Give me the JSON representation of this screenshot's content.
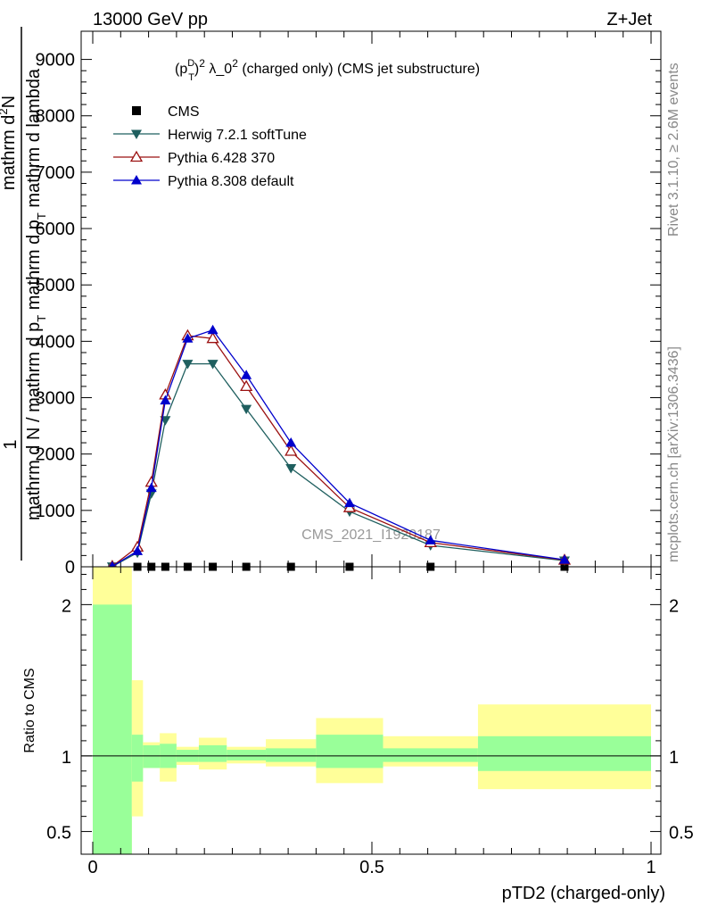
{
  "header": {
    "left": "13000 GeV pp",
    "right": "Z+Jet"
  },
  "side_texts": {
    "rivet": "Rivet 3.1.10, ≥ 2.6M events",
    "mcplots": "mcplots.cern.ch [arXiv:1306.3436]"
  },
  "watermark": "CMS_2021_I1920187",
  "colors": {
    "cms": "#000000",
    "herwig": "#1f5f5f",
    "pythia6": "#9b1111",
    "pythia8": "#0000cc",
    "band_inner": "#99ff99",
    "band_outer": "#ffff99"
  },
  "chart_data": [
    {
      "type": "line",
      "title_parts": {
        "a": "(p",
        "b": "D",
        "c": "T",
        "d": ")",
        "e": "2",
        "f": " λ_0",
        "g": "2",
        "h": " (charged only) (CMS jet substructure)"
      },
      "ylabel_parts": {
        "one": "1",
        "num": "mathrm d",
        "num_sup": "2",
        "num_end": "N",
        "den": "mathrm d N / mathrm d p",
        "den_sub": "T",
        "den_end": " mathrm d p",
        "den_sub2": "T",
        "den_end2": " mathrm d lambda"
      },
      "xlim": [
        0,
        1
      ],
      "ylim": [
        0,
        9500
      ],
      "yticks": [
        0,
        1000,
        2000,
        3000,
        4000,
        5000,
        6000,
        7000,
        8000,
        9000
      ],
      "ytick_labels": [
        "0",
        "1000",
        "2000",
        "3000",
        "4000",
        "5000",
        "6000",
        "7000",
        "8000",
        "9000"
      ],
      "legend_position": "top-left",
      "series": [
        {
          "name": "CMS",
          "marker": "square",
          "x": [
            0.035,
            0.08,
            0.105,
            0.13,
            0.17,
            0.215,
            0.275,
            0.355,
            0.46,
            0.605,
            0.845
          ],
          "values": [
            0,
            0,
            0,
            0,
            0,
            0,
            0,
            0,
            0,
            0,
            0
          ]
        },
        {
          "name": "Herwig 7.2.1 softTune",
          "marker": "triangle-down",
          "x": [
            0.035,
            0.08,
            0.105,
            0.13,
            0.17,
            0.215,
            0.275,
            0.355,
            0.46,
            0.605,
            0.845
          ],
          "values": [
            5,
            250,
            1300,
            2600,
            3600,
            3600,
            2800,
            1750,
            980,
            380,
            110
          ]
        },
        {
          "name": "Pythia 6.428 370",
          "marker": "triangle-up-open",
          "x": [
            0.035,
            0.08,
            0.105,
            0.13,
            0.17,
            0.215,
            0.275,
            0.355,
            0.46,
            0.605,
            0.845
          ],
          "values": [
            10,
            350,
            1500,
            3050,
            4100,
            4050,
            3200,
            2050,
            1050,
            430,
            120
          ]
        },
        {
          "name": "Pythia 8.308 default",
          "marker": "triangle-up",
          "x": [
            0.035,
            0.08,
            0.105,
            0.13,
            0.17,
            0.215,
            0.275,
            0.355,
            0.46,
            0.605,
            0.845
          ],
          "values": [
            8,
            280,
            1400,
            2950,
            4050,
            4200,
            3400,
            2200,
            1130,
            470,
            125
          ]
        }
      ]
    },
    {
      "type": "area",
      "ylabel": "Ratio to CMS",
      "xlabel": "pTD2 (charged-only)",
      "xlim": [
        0,
        1
      ],
      "ylim": [
        0.35,
        2.25
      ],
      "xticks": [
        0,
        0.5,
        1
      ],
      "xtick_labels": [
        "0",
        "0.5",
        "1"
      ],
      "yticks": [
        0.5,
        1,
        2
      ],
      "ytick_labels": [
        "0.5",
        "1",
        "2"
      ],
      "bins": [
        {
          "lo": 0.0,
          "hi": 0.07,
          "inner": [
            0.35,
            2.0
          ],
          "outer": [
            0.35,
            2.25
          ]
        },
        {
          "lo": 0.07,
          "hi": 0.09,
          "inner": [
            0.83,
            1.14
          ],
          "outer": [
            0.6,
            1.5
          ]
        },
        {
          "lo": 0.09,
          "hi": 0.12,
          "inner": [
            0.92,
            1.07
          ],
          "outer": [
            0.92,
            1.09
          ]
        },
        {
          "lo": 0.12,
          "hi": 0.15,
          "inner": [
            0.92,
            1.08
          ],
          "outer": [
            0.83,
            1.15
          ]
        },
        {
          "lo": 0.15,
          "hi": 0.19,
          "inner": [
            0.96,
            1.04
          ],
          "outer": [
            0.94,
            1.06
          ]
        },
        {
          "lo": 0.19,
          "hi": 0.24,
          "inner": [
            0.96,
            1.07
          ],
          "outer": [
            0.91,
            1.12
          ]
        },
        {
          "lo": 0.24,
          "hi": 0.31,
          "inner": [
            0.97,
            1.04
          ],
          "outer": [
            0.95,
            1.06
          ]
        },
        {
          "lo": 0.31,
          "hi": 0.4,
          "inner": [
            0.96,
            1.05
          ],
          "outer": [
            0.93,
            1.11
          ]
        },
        {
          "lo": 0.4,
          "hi": 0.52,
          "inner": [
            0.92,
            1.14
          ],
          "outer": [
            0.82,
            1.25
          ]
        },
        {
          "lo": 0.52,
          "hi": 0.69,
          "inner": [
            0.96,
            1.05
          ],
          "outer": [
            0.93,
            1.13
          ]
        },
        {
          "lo": 0.69,
          "hi": 1.0,
          "inner": [
            0.9,
            1.13
          ],
          "outer": [
            0.78,
            1.34
          ]
        }
      ]
    }
  ]
}
